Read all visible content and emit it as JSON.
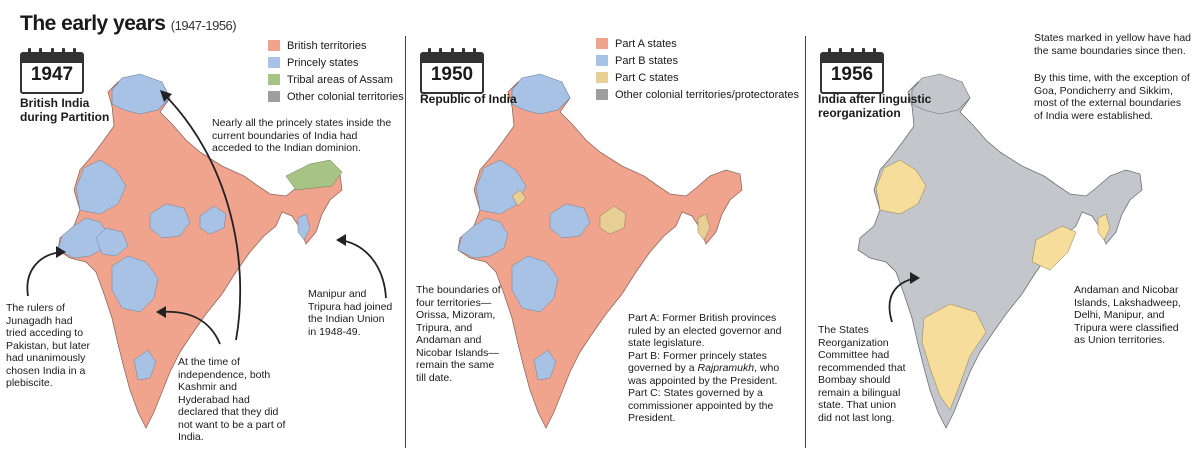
{
  "title": "The early years",
  "title_years": "(1947-1956)",
  "colors": {
    "british": "#f0a48e",
    "princely": "#a8c2e6",
    "tribal": "#a8c484",
    "colonial": "#9e9e9e",
    "partA": "#f0a48e",
    "partB": "#a8c2e6",
    "partC": "#e8cf96",
    "grey": "#c3c6ca",
    "yellow": "#f6dd9c"
  },
  "panels": [
    {
      "year": "1947",
      "subtitle_1": "British India",
      "subtitle_2": "during Partition",
      "legend": [
        {
          "label": "British territories",
          "color": "#f0a48e"
        },
        {
          "label": "Princely states",
          "color": "#a8c2e6"
        },
        {
          "label": "Tribal areas of Assam",
          "color": "#a8c484"
        },
        {
          "label": "Other colonial territories",
          "color": "#9e9e9e"
        }
      ],
      "notes": [
        "Nearly all the princely states inside the current boundaries of India had acceded to the Indian dominion.",
        "The rulers of Junagadh had tried acceding to Pakistan, but later had unanimously chosen India in a plebiscite.",
        "At the time of independence, both Kashmir and Hyderabad had declared that they did not want to be a part of India.",
        "Manipur and Tripura had joined the Indian Union in 1948-49."
      ]
    },
    {
      "year": "1950",
      "subtitle_1": "Republic of India",
      "legend": [
        {
          "label": "Part A states",
          "color": "#f0a48e"
        },
        {
          "label": "Part B states",
          "color": "#a8c2e6"
        },
        {
          "label": "Part C states",
          "color": "#e8cf96"
        },
        {
          "label": "Other colonial territories/protectorates",
          "color": "#9e9e9e"
        }
      ],
      "notes": [
        "The boundaries of four territories— Orissa, Mizoram, Tripura, and Andaman and Nicobar Islands— remain the same till date.",
        "Part A: Former British provinces ruled by an elected governor and state legislature.",
        "Part B: Former princely states governed by a",
        "Rajpramukh",
        ", who was appointed by the President.",
        "Part C: States governed by a commissioner appointed by the President."
      ]
    },
    {
      "year": "1956",
      "subtitle_1": "India after linguistic",
      "subtitle_2": "reorganization",
      "notes": [
        "States marked in yellow have had the same boundaries since then.",
        "By this time, with the exception of Goa, Pondicherry and Sikkim, most of the external boundaries of India were established.",
        "Andaman and Nicobar Islands, Lakshadweep, Delhi, Manipur, and Tripura were classified as Union territories.",
        "The States Reorganization Committee had recommended that Bombay should remain a bilingual state. That union did not last long."
      ]
    }
  ]
}
